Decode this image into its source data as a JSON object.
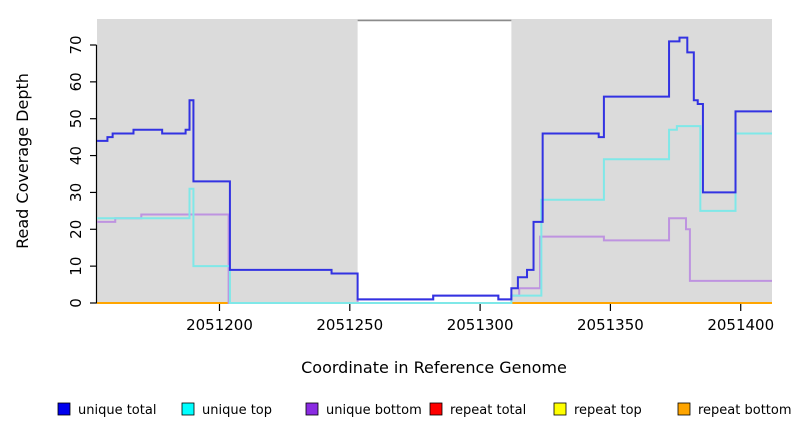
{
  "chart_data": {
    "type": "line",
    "subtype": "step-coverage-plot",
    "xlabel": "Coordinate in Reference Genome",
    "ylabel": "Read Coverage Depth",
    "x_range": [
      2051153,
      2051412
    ],
    "y_range": [
      0,
      77
    ],
    "x_ticks": [
      2051200,
      2051250,
      2051300,
      2051350,
      2051400
    ],
    "y_ticks": [
      0,
      10,
      20,
      30,
      40,
      50,
      60,
      70
    ],
    "grid": false,
    "panel_color": "#DBDBDB",
    "gap_band": {
      "from": 2051253,
      "to": 2051312,
      "color": "#FFFFFF",
      "top_border_color": "#8C8C8C"
    },
    "series": [
      {
        "name": "repeat total",
        "z": 1,
        "color": "#EE0000",
        "swatch": "#FF0000",
        "steps": [
          [
            2051153,
            0
          ]
        ]
      },
      {
        "name": "repeat top",
        "z": 2,
        "color": "#FFFF00",
        "swatch": "#FFFF00",
        "steps": [
          [
            2051153,
            0
          ]
        ]
      },
      {
        "name": "repeat bottom",
        "z": 3,
        "color": "#FFA500",
        "swatch": "#FFA500",
        "steps": [
          [
            2051153,
            0
          ]
        ]
      },
      {
        "name": "unique bottom",
        "z": 5,
        "color": "#BE93E0",
        "swatch": "#8A2BE2",
        "steps": [
          [
            2051153,
            22
          ],
          [
            2051160,
            23
          ],
          [
            2051170,
            24
          ],
          [
            2051203.5,
            0
          ],
          [
            2051253,
            1
          ],
          [
            2051282,
            2
          ],
          [
            2051307,
            1
          ],
          [
            2051312,
            2
          ],
          [
            2051315,
            4
          ],
          [
            2051323,
            18
          ],
          [
            2051347.5,
            17
          ],
          [
            2051372.5,
            23
          ],
          [
            2051379,
            20
          ],
          [
            2051380.5,
            6
          ]
        ]
      },
      {
        "name": "unique top",
        "z": 6,
        "color": "#7FE8E8",
        "swatch": "#00FFFF",
        "steps": [
          [
            2051153,
            23
          ],
          [
            2051188.5,
            31
          ],
          [
            2051190,
            10
          ],
          [
            2051204,
            0
          ],
          [
            2051312,
            2
          ],
          [
            2051323.5,
            28
          ],
          [
            2051347.5,
            39
          ],
          [
            2051372.5,
            47
          ],
          [
            2051375.5,
            48
          ],
          [
            2051384.5,
            25
          ],
          [
            2051398,
            46
          ]
        ]
      },
      {
        "name": "unique total",
        "z": 7,
        "color": "#3232E2",
        "swatch": "#0000EE",
        "steps": [
          [
            2051153,
            44
          ],
          [
            2051157,
            45
          ],
          [
            2051159,
            46
          ],
          [
            2051167,
            47
          ],
          [
            2051178,
            46
          ],
          [
            2051187,
            47
          ],
          [
            2051188.5,
            55
          ],
          [
            2051190,
            33
          ],
          [
            2051204,
            9
          ],
          [
            2051243,
            8
          ],
          [
            2051253,
            1
          ],
          [
            2051282,
            2
          ],
          [
            2051307,
            1
          ],
          [
            2051312,
            4
          ],
          [
            2051314.5,
            7
          ],
          [
            2051318,
            9
          ],
          [
            2051320.5,
            22
          ],
          [
            2051324,
            46
          ],
          [
            2051345.5,
            45
          ],
          [
            2051347.5,
            56
          ],
          [
            2051372.5,
            71
          ],
          [
            2051376.5,
            72
          ],
          [
            2051379.5,
            68
          ],
          [
            2051382,
            55
          ],
          [
            2051383.5,
            54
          ],
          [
            2051385.5,
            30
          ],
          [
            2051398,
            52
          ]
        ]
      }
    ],
    "zero_line_overlays": [
      {
        "z": 4,
        "from": 2051203.5,
        "to": 2051253,
        "value": 0,
        "color": "#D5578C"
      },
      {
        "z": 4,
        "from": 2051253,
        "to": 2051312,
        "value": 0,
        "color": "#8FC993"
      }
    ],
    "legend": [
      {
        "label": "unique total",
        "swatch": "#0000EE"
      },
      {
        "label": "unique top",
        "swatch": "#00FFFF"
      },
      {
        "label": "unique bottom",
        "swatch": "#8A2BE2"
      },
      {
        "label": "repeat total",
        "swatch": "#FF0000"
      },
      {
        "label": "repeat top",
        "swatch": "#FFFF00"
      },
      {
        "label": "repeat bottom",
        "swatch": "#FFA500"
      }
    ],
    "legend_position": "bottom"
  }
}
